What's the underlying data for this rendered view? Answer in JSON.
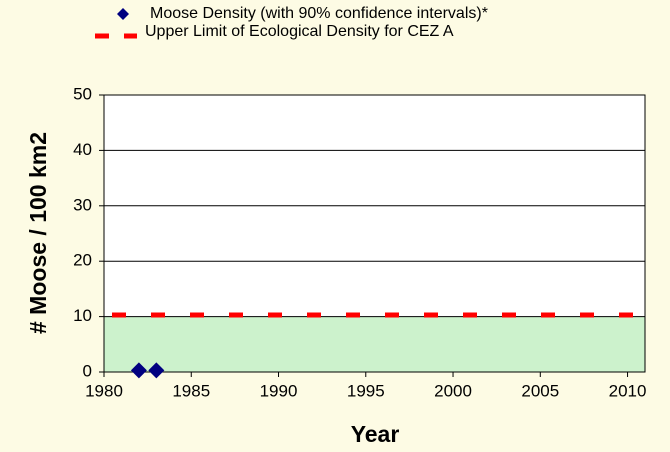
{
  "chart_data": {
    "type": "scatter",
    "xlabel": "Year",
    "ylabel": "# Moose / 100 km2",
    "xlim": [
      1980,
      2011
    ],
    "ylim": [
      0,
      50
    ],
    "xticks": [
      1980,
      1985,
      1990,
      1995,
      2000,
      2005,
      2010
    ],
    "yticks": [
      0,
      10,
      20,
      30,
      40,
      50
    ],
    "grid": true,
    "shaded_region": {
      "ylim": [
        0,
        10
      ],
      "color": "#ccf2cc"
    },
    "series": [
      {
        "name": "Moose Density (with 90% confidence intervals)*",
        "color": "#000080",
        "marker": "diamond",
        "x": [
          1982,
          1983
        ],
        "values": [
          0.3,
          0.3
        ]
      },
      {
        "name": "Upper Limit of Ecological Density for CEZ A",
        "color": "#ff0000",
        "style": "dashed",
        "y": 10.3
      }
    ]
  }
}
